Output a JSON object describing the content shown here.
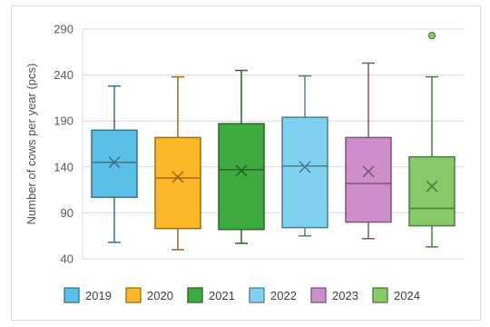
{
  "chart_data": {
    "type": "box",
    "title": "",
    "xlabel": "",
    "ylabel": "Number of cows per year (pcs)",
    "ylim": [
      40,
      290
    ],
    "yticks": [
      40,
      90,
      140,
      190,
      240,
      290
    ],
    "grid": true,
    "legend_position": "bottom",
    "series": [
      {
        "name": "2019",
        "color": "#5bc0e8",
        "whisker_low": 58,
        "q1": 107,
        "median": 145,
        "q3": 180,
        "whisker_high": 228,
        "mean": 145,
        "outliers": []
      },
      {
        "name": "2020",
        "color": "#fdb827",
        "whisker_low": 50,
        "q1": 73,
        "median": 128,
        "q3": 172,
        "whisker_high": 238,
        "mean": 129,
        "outliers": []
      },
      {
        "name": "2021",
        "color": "#3daa3d",
        "whisker_low": 57,
        "q1": 72,
        "median": 137,
        "q3": 187,
        "whisker_high": 245,
        "mean": 136,
        "outliers": []
      },
      {
        "name": "2022",
        "color": "#80d0f0",
        "whisker_low": 65,
        "q1": 74,
        "median": 141,
        "q3": 194,
        "whisker_high": 239,
        "mean": 140,
        "outliers": []
      },
      {
        "name": "2023",
        "color": "#cc8fcc",
        "whisker_low": 62,
        "q1": 80,
        "median": 122,
        "q3": 172,
        "whisker_high": 253,
        "mean": 135,
        "outliers": []
      },
      {
        "name": "2024",
        "color": "#88c96a",
        "whisker_low": 53,
        "q1": 76,
        "median": 95,
        "q3": 151,
        "whisker_high": 238,
        "mean": 119,
        "outliers": [
          283
        ]
      }
    ]
  }
}
